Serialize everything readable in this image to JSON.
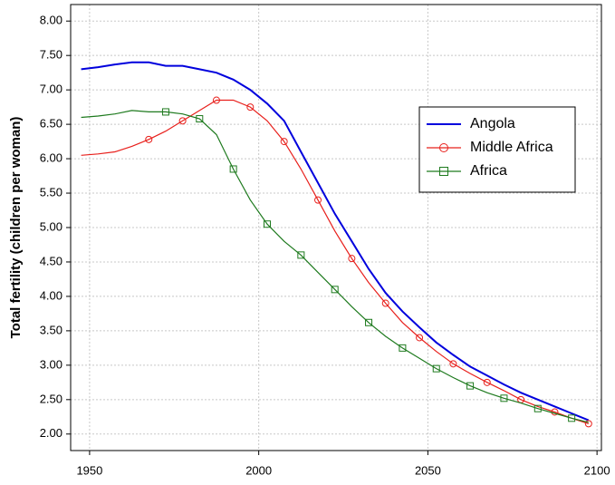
{
  "chart_data": {
    "type": "line",
    "y_label": "Total fertility (children per woman)",
    "x": [
      1947.5,
      1952.5,
      1957.5,
      1962.5,
      1967.5,
      1972.5,
      1977.5,
      1982.5,
      1987.5,
      1992.5,
      1997.5,
      2002.5,
      2007.5,
      2012.5,
      2017.5,
      2022.5,
      2027.5,
      2032.5,
      2037.5,
      2042.5,
      2047.5,
      2052.5,
      2057.5,
      2062.5,
      2067.5,
      2072.5,
      2077.5,
      2082.5,
      2087.5,
      2092.5,
      2097.5
    ],
    "series": [
      {
        "name": "Angola",
        "color": "#0000dd",
        "marker": "none",
        "values": [
          7.3,
          7.33,
          7.37,
          7.4,
          7.4,
          7.35,
          7.35,
          7.3,
          7.25,
          7.15,
          7.0,
          6.8,
          6.55,
          6.1,
          5.65,
          5.2,
          4.8,
          4.4,
          4.05,
          3.78,
          3.55,
          3.33,
          3.15,
          2.98,
          2.85,
          2.72,
          2.6,
          2.5,
          2.4,
          2.3,
          2.2
        ]
      },
      {
        "name": "Middle Africa",
        "color": "#e8201c",
        "marker": "circle",
        "values": [
          6.05,
          6.07,
          6.1,
          6.18,
          6.28,
          6.4,
          6.55,
          6.7,
          6.85,
          6.85,
          6.75,
          6.55,
          6.25,
          5.85,
          5.4,
          4.95,
          4.55,
          4.2,
          3.9,
          3.62,
          3.4,
          3.2,
          3.02,
          2.88,
          2.75,
          2.63,
          2.5,
          2.4,
          2.32,
          2.23,
          2.15
        ]
      },
      {
        "name": "Africa",
        "color": "#1e7a1e",
        "marker": "square",
        "values": [
          6.6,
          6.62,
          6.65,
          6.7,
          6.68,
          6.68,
          6.65,
          6.58,
          6.35,
          5.85,
          5.4,
          5.05,
          4.8,
          4.6,
          4.35,
          4.1,
          3.85,
          3.62,
          3.42,
          3.25,
          3.1,
          2.95,
          2.82,
          2.7,
          2.6,
          2.52,
          2.45,
          2.37,
          2.3,
          2.23,
          2.17
        ]
      }
    ],
    "xlim": [
      1944.4,
      2101.3
    ],
    "ylim": [
      1.76,
      8.24
    ],
    "xticks": [
      1950,
      2000,
      2050,
      2100
    ],
    "yticks": [
      {
        "value": 2.0,
        "label": "2.00"
      },
      {
        "value": 2.5,
        "label": "2.50"
      },
      {
        "value": 3.0,
        "label": "3.00"
      },
      {
        "value": 3.5,
        "label": "3.50"
      },
      {
        "value": 4.0,
        "label": "4.00"
      },
      {
        "value": 4.5,
        "label": "4.50"
      },
      {
        "value": 5.0,
        "label": "5.00"
      },
      {
        "value": 5.5,
        "label": "5.50"
      },
      {
        "value": 6.0,
        "label": "6.00"
      },
      {
        "value": 6.5,
        "label": "6.50"
      },
      {
        "value": 7.0,
        "label": "7.00"
      },
      {
        "value": 7.5,
        "label": "7.50"
      },
      {
        "value": 8.0,
        "label": "8.00"
      }
    ],
    "grid": true,
    "legend": "right"
  }
}
